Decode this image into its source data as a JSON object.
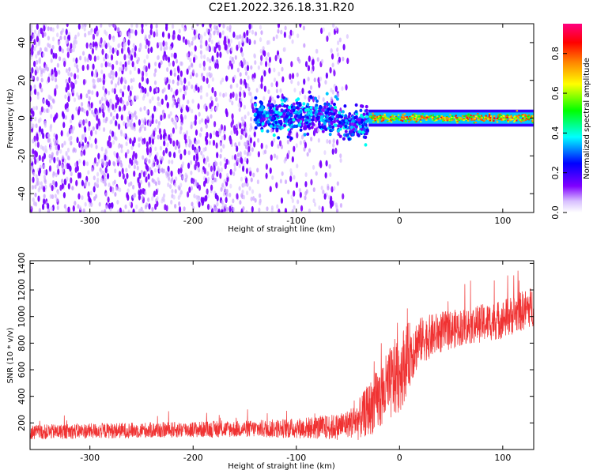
{
  "figure": {
    "title": "C2E1.2022.326.18.31.R20"
  },
  "chart_data": [
    {
      "type": "heatmap",
      "title": "",
      "xlabel": "Height of straight line (km)",
      "ylabel": "Frequency (Hz)",
      "xlim": [
        -358,
        130
      ],
      "ylim": [
        -50,
        50
      ],
      "xticks": [
        -300,
        -200,
        -100,
        0,
        100
      ],
      "yticks": [
        -40,
        -20,
        0,
        20,
        40
      ],
      "colorbar": {
        "label": "Normalized spectral amplitude",
        "range": [
          0,
          0.95
        ],
        "ticks": [
          0.0,
          0.2,
          0.4,
          0.6,
          0.8
        ],
        "colors": [
          "#ffffff",
          "#cfb1ff",
          "#8000ff",
          "#0000ff",
          "#00ffff",
          "#00ff00",
          "#ffff00",
          "#ff8000",
          "#ff0000",
          "#ff0080"
        ]
      },
      "description_regions": [
        {
          "x_range": [
            -358,
            -140
          ],
          "freq_range": [
            -50,
            50
          ],
          "amplitude": 0.05
        },
        {
          "x_range": [
            -140,
            -30
          ],
          "freq_range": [
            -12,
            8
          ],
          "amplitude": 0.3
        },
        {
          "x_range": [
            -30,
            130
          ],
          "freq_range": [
            -3,
            3
          ],
          "amplitude": 0.85
        }
      ]
    },
    {
      "type": "line",
      "title": "",
      "xlabel": "Height of straight line (km)",
      "ylabel": "SNR (10 * v/v)",
      "xlim": [
        -358,
        130
      ],
      "ylim": [
        0,
        1420
      ],
      "xticks": [
        -300,
        -200,
        -100,
        0,
        100
      ],
      "yticks": [
        200,
        400,
        600,
        800,
        1000,
        1200,
        1400
      ],
      "color": "#f03232",
      "trend": {
        "x": [
          -358,
          -300,
          -200,
          -150,
          -100,
          -60,
          -40,
          -20,
          0,
          10,
          20,
          40,
          60,
          80,
          100,
          130
        ],
        "y": [
          130,
          140,
          150,
          155,
          160,
          170,
          220,
          380,
          580,
          720,
          820,
          880,
          920,
          950,
          980,
          1080
        ]
      },
      "noise_amplitude": {
        "x": [
          -358,
          -150,
          -100,
          -50,
          -20,
          0,
          20,
          60,
          130
        ],
        "y": [
          80,
          90,
          110,
          150,
          350,
          450,
          250,
          200,
          220
        ]
      },
      "sample_count": 2400
    }
  ]
}
